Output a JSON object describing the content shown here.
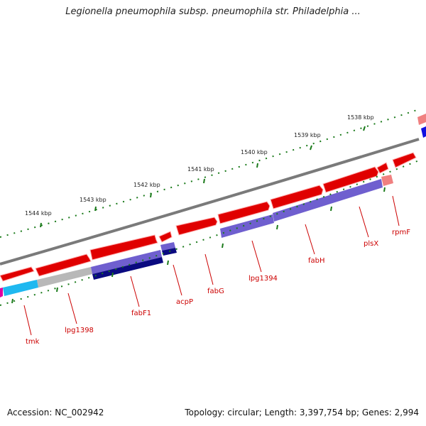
{
  "title": "Legionella pneumophila subsp. pneumophila str. Philadelphia ...",
  "footer": {
    "accession": "Accession: NC_002942",
    "topology": "Topology: circular; Length: 3,397,754 bp; Genes: 2,994"
  },
  "kbp_labels": [
    "1538 kbp",
    "1539 kbp",
    "1540 kbp",
    "1541 kbp",
    "1542 kbp",
    "1543 kbp",
    "1544 kbp"
  ],
  "gene_labels": [
    "tmk",
    "lpg1398",
    "fabF1",
    "acpP",
    "fabG",
    "lpg1394",
    "fabH",
    "plsX",
    "rpmF"
  ],
  "colors": {
    "backbone": "#7a7a7a",
    "gene_red": "#ee0000",
    "gene_pink": "#f08080",
    "cds_purple": "#6f5fcf",
    "cds_navy": "#0a0a80",
    "cds_gray": "#b8b8b8",
    "cds_cyan": "#1fb8f0",
    "cds_blue": "#1010e0",
    "tick_green": "#1a7a1a",
    "label_red": "#cc0000"
  }
}
